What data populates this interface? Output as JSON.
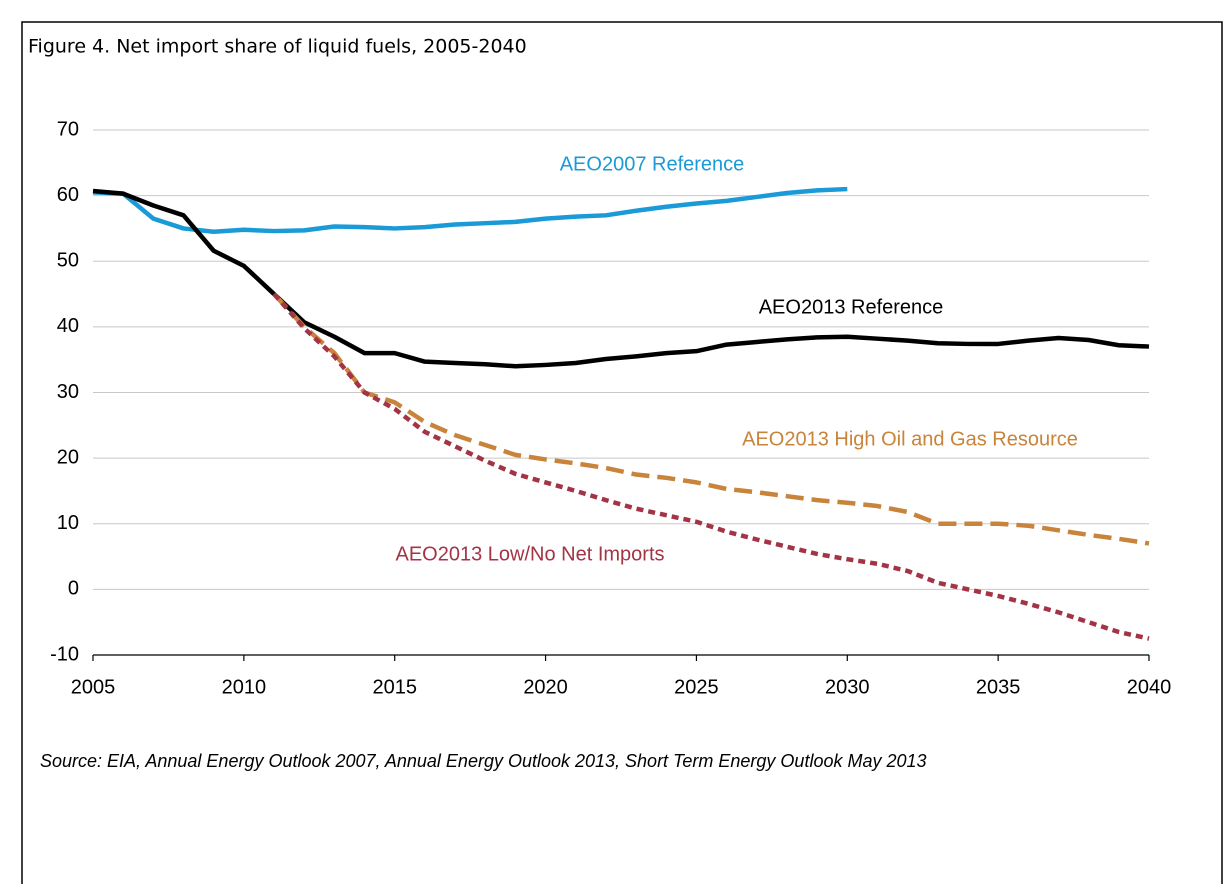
{
  "chart_data": {
    "type": "line",
    "title": "Figure 4. Net import share of liquid fuels, 2005-2040",
    "source": "Source:  EIA, Annual Energy Outlook 2007, Annual Energy Outlook 2013, Short Term Energy Outlook May 2013",
    "x": [
      2005,
      2006,
      2007,
      2008,
      2009,
      2010,
      2011,
      2012,
      2013,
      2014,
      2015,
      2016,
      2017,
      2018,
      2019,
      2020,
      2021,
      2022,
      2023,
      2024,
      2025,
      2026,
      2027,
      2028,
      2029,
      2030,
      2031,
      2032,
      2033,
      2034,
      2035,
      2036,
      2037,
      2038,
      2039,
      2040
    ],
    "xlim": [
      2005,
      2040
    ],
    "xticks": [
      2005,
      2010,
      2015,
      2020,
      2025,
      2030,
      2035,
      2040
    ],
    "ylim": [
      -10,
      70
    ],
    "yticks": [
      -10,
      0,
      10,
      20,
      30,
      40,
      50,
      60,
      70
    ],
    "grid": true,
    "series": [
      {
        "name": "AEO2007 Reference",
        "color": "#1a9ad6",
        "style": "solid",
        "values": [
          60.5,
          60.3,
          56.5,
          55,
          54.5,
          54.8,
          54.6,
          54.7,
          55.3,
          55.2,
          55,
          55.2,
          55.6,
          55.8,
          56,
          56.5,
          56.8,
          57,
          57.7,
          58.3,
          58.8,
          59.2,
          59.8,
          60.4,
          60.8,
          61,
          null,
          null,
          null,
          null,
          null,
          null,
          null,
          null,
          null,
          null
        ]
      },
      {
        "name": "AEO2013 Reference",
        "color": "#000000",
        "style": "solid",
        "values": [
          60.7,
          60.3,
          58.5,
          57,
          51.6,
          49.3,
          45,
          40.7,
          38.5,
          36,
          36,
          34.7,
          34.5,
          34.3,
          34,
          34.2,
          34.5,
          35.1,
          35.5,
          36,
          36.3,
          37.3,
          37.7,
          38.1,
          38.4,
          38.5,
          38.2,
          37.9,
          37.5,
          37.4,
          37.4,
          37.9,
          38.3,
          38,
          37.2,
          37
        ]
      },
      {
        "name": "AEO2013 High Oil and Gas Resource",
        "color": "#c8843a",
        "style": "dashed",
        "values": [
          null,
          null,
          null,
          null,
          null,
          null,
          45,
          40,
          36,
          30,
          28.5,
          25.5,
          23.5,
          22,
          20.5,
          19.8,
          19.2,
          18.5,
          17.5,
          17,
          16.3,
          15.3,
          14.8,
          14.2,
          13.6,
          13.2,
          12.7,
          11.8,
          10,
          10,
          10,
          9.7,
          9,
          8.3,
          7.7,
          7
        ]
      },
      {
        "name": "AEO2013 Low/No Net Imports",
        "color": "#a33446",
        "style": "dotted",
        "values": [
          null,
          null,
          null,
          null,
          null,
          null,
          45,
          39.8,
          35.5,
          30,
          27.5,
          24,
          21.8,
          19.6,
          17.6,
          16.3,
          15,
          13.6,
          12.3,
          11.3,
          10.3,
          8.8,
          7.6,
          6.5,
          5.4,
          4.6,
          3.9,
          2.8,
          1,
          0,
          -1,
          -2.2,
          -3.5,
          -5,
          -6.5,
          -7.5
        ]
      }
    ]
  }
}
